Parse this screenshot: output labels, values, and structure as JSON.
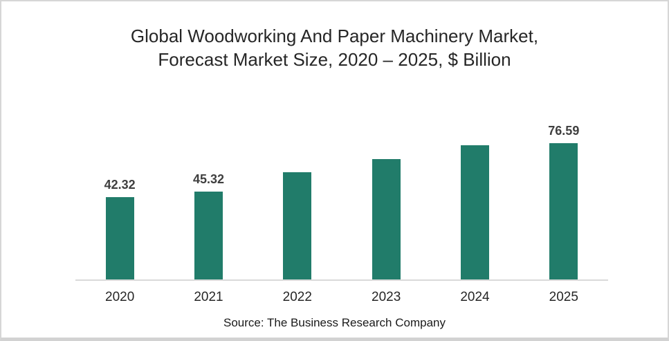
{
  "title": {
    "line1": "Global Woodworking And Paper Machinery Market,",
    "line2": "Forecast Market Size, 2020 – 2025, $ Billion"
  },
  "source": "Source: The Business Research Company",
  "colors": {
    "bar": "#217C6A",
    "axis_line": "#D9D9D9",
    "value_label": "#3F3F3F",
    "title_text": "#262626"
  },
  "chart_data": {
    "type": "bar",
    "title": "Global Woodworking And Paper Machinery Market, Forecast Market Size, 2020 – 2025, $ Billion",
    "categories": [
      "2020",
      "2021",
      "2022",
      "2023",
      "2024",
      "2025"
    ],
    "values": [
      42.32,
      45.32,
      55.1,
      61.9,
      69.0,
      76.59
    ],
    "data_labels": [
      "42.32",
      "45.32",
      null,
      null,
      null,
      "76.59"
    ],
    "xlabel": "",
    "ylabel": "$ Billion",
    "ylim": [
      0,
      80
    ],
    "grid": false,
    "legend": false,
    "bar_color": "#217C6A",
    "source": "Source: The Business Research Company"
  }
}
